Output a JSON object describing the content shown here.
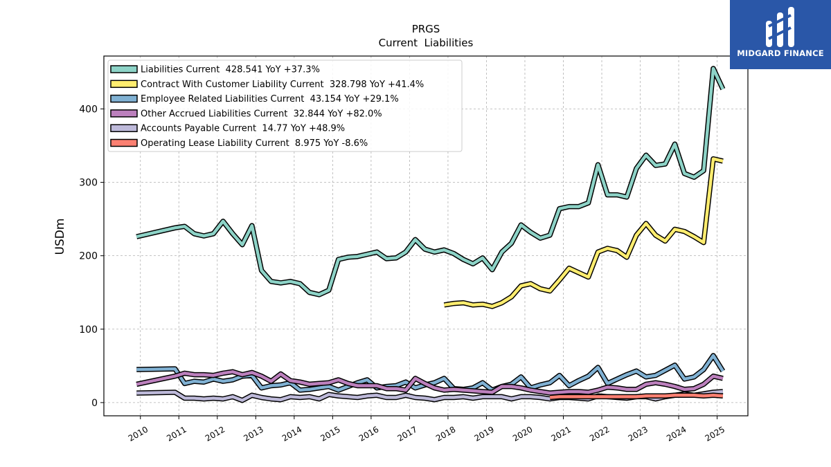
{
  "brand": {
    "name": "MIDGARD FINANCE",
    "color": "#2a57a8",
    "icon": "midgard-logo-icon"
  },
  "chart_data": {
    "type": "line",
    "title": "PRGS",
    "subtitle": "Current  Liabilities",
    "ylabel": "USDm",
    "xlabel": "",
    "ylim": [
      -18,
      472
    ],
    "xlim": [
      2009.05,
      2025.8
    ],
    "yticks": [
      0,
      100,
      200,
      300,
      400
    ],
    "xticks": [
      2010,
      2011,
      2012,
      2013,
      2014,
      2015,
      2016,
      2017,
      2018,
      2019,
      2020,
      2021,
      2022,
      2023,
      2024,
      2025
    ],
    "grid": true,
    "legend_position": "top-left",
    "series": [
      {
        "name": "Liabilities Current  428.541 YoY +37.3%",
        "color": "#8dd3c7",
        "x": [
          2009.9,
          2010.9,
          2011.15,
          2011.4,
          2011.65,
          2011.9,
          2012.15,
          2012.4,
          2012.65,
          2012.9,
          2013.15,
          2013.4,
          2013.65,
          2013.9,
          2014.15,
          2014.4,
          2014.65,
          2014.9,
          2015.15,
          2015.4,
          2015.65,
          2015.9,
          2016.15,
          2016.4,
          2016.65,
          2016.9,
          2017.15,
          2017.4,
          2017.65,
          2017.9,
          2018.15,
          2018.4,
          2018.65,
          2018.9,
          2019.15,
          2019.4,
          2019.65,
          2019.9,
          2020.15,
          2020.4,
          2020.65,
          2020.9,
          2021.15,
          2021.4,
          2021.65,
          2021.9,
          2022.15,
          2022.4,
          2022.65,
          2022.9,
          2023.15,
          2023.4,
          2023.65,
          2023.9,
          2024.15,
          2024.4,
          2024.65,
          2024.9,
          2025.15
        ],
        "y": [
          226,
          238,
          240,
          230,
          227,
          230,
          247,
          230,
          215,
          241,
          180,
          165,
          163,
          165,
          162,
          150,
          147,
          153,
          195,
          198,
          199,
          202,
          205,
          196,
          197,
          205,
          222,
          209,
          205,
          208,
          203,
          195,
          189,
          197,
          181,
          205,
          217,
          242,
          232,
          224,
          228,
          264,
          267,
          267,
          272,
          324,
          283,
          283,
          280,
          319,
          337,
          323,
          325,
          352,
          312,
          307,
          316,
          455,
          427
        ]
      },
      {
        "name": "Contract With Customer Liability Current  328.798 YoY +41.4%",
        "color": "#ffed6f",
        "x": [
          2017.9,
          2018.15,
          2018.4,
          2018.65,
          2018.9,
          2019.15,
          2019.4,
          2019.65,
          2019.9,
          2020.15,
          2020.4,
          2020.65,
          2020.9,
          2021.15,
          2021.4,
          2021.65,
          2021.9,
          2022.15,
          2022.4,
          2022.65,
          2022.9,
          2023.15,
          2023.4,
          2023.65,
          2023.9,
          2024.15,
          2024.4,
          2024.65,
          2024.9,
          2025.15
        ],
        "y": [
          133,
          135,
          136,
          133,
          134,
          131,
          136,
          144,
          159,
          162,
          155,
          152,
          167,
          183,
          177,
          171,
          205,
          210,
          207,
          198,
          228,
          244,
          228,
          220,
          236,
          233,
          226,
          218,
          332,
          329
        ]
      },
      {
        "name": "Employee Related Liabilities Current  43.154 YoY +29.1%",
        "color": "#80b1d3",
        "x": [
          2009.9,
          2010.9,
          2011.15,
          2011.4,
          2011.65,
          2011.9,
          2012.15,
          2012.4,
          2012.65,
          2012.9,
          2013.15,
          2013.4,
          2013.65,
          2013.9,
          2014.15,
          2014.4,
          2014.65,
          2014.9,
          2015.15,
          2015.4,
          2015.65,
          2015.9,
          2016.15,
          2016.4,
          2016.65,
          2016.9,
          2017.15,
          2017.4,
          2017.65,
          2017.9,
          2018.15,
          2018.4,
          2018.65,
          2018.9,
          2019.15,
          2019.4,
          2019.65,
          2019.9,
          2020.15,
          2020.4,
          2020.65,
          2020.9,
          2021.15,
          2021.4,
          2021.65,
          2021.9,
          2022.15,
          2022.4,
          2022.65,
          2022.9,
          2023.15,
          2023.4,
          2023.65,
          2023.9,
          2024.15,
          2024.4,
          2024.65,
          2024.9,
          2025.15
        ],
        "y": [
          45,
          46,
          26,
          29,
          28,
          32,
          29,
          31,
          36,
          37,
          20,
          23,
          24,
          27,
          17,
          18,
          20,
          22,
          17,
          22,
          27,
          31,
          20,
          22,
          23,
          28,
          20,
          24,
          27,
          33,
          19,
          18,
          20,
          27,
          17,
          22,
          25,
          35,
          20,
          24,
          27,
          37,
          23,
          30,
          36,
          48,
          26,
          32,
          38,
          43,
          35,
          37,
          44,
          51,
          32,
          35,
          45,
          64,
          43
        ]
      },
      {
        "name": "Other Accrued Liabilities Current  32.844 YoY +82.0%",
        "color": "#bc80bd",
        "x": [
          2009.9,
          2010.9,
          2011.15,
          2011.4,
          2011.65,
          2011.9,
          2012.15,
          2012.4,
          2012.65,
          2012.9,
          2013.15,
          2013.4,
          2013.65,
          2013.9,
          2014.15,
          2014.4,
          2014.65,
          2014.9,
          2015.15,
          2015.4,
          2015.65,
          2015.9,
          2016.15,
          2016.4,
          2016.65,
          2016.9,
          2017.15,
          2017.4,
          2017.65,
          2017.9,
          2018.15,
          2018.4,
          2018.65,
          2018.9,
          2019.15,
          2019.4,
          2019.65,
          2019.9,
          2020.15,
          2020.4,
          2020.65,
          2020.9,
          2021.15,
          2021.4,
          2021.65,
          2021.9,
          2022.15,
          2022.4,
          2022.65,
          2022.9,
          2023.15,
          2023.4,
          2023.65,
          2023.9,
          2024.15,
          2024.4,
          2024.65,
          2024.9,
          2025.15
        ],
        "y": [
          25,
          36,
          40,
          38,
          38,
          37,
          40,
          42,
          38,
          41,
          36,
          29,
          39,
          30,
          28,
          25,
          26,
          27,
          31,
          26,
          23,
          23,
          23,
          19,
          19,
          17,
          33,
          26,
          20,
          17,
          18,
          17,
          16,
          15,
          14,
          22,
          22,
          20,
          17,
          15,
          13,
          14,
          15,
          15,
          14,
          17,
          21,
          20,
          18,
          18,
          25,
          27,
          25,
          22,
          18,
          19,
          25,
          36,
          33
        ]
      },
      {
        "name": "Accounts Payable Current  14.77 YoY +48.9%",
        "color": "#bebada",
        "x": [
          2009.9,
          2010.9,
          2011.15,
          2011.4,
          2011.65,
          2011.9,
          2012.15,
          2012.4,
          2012.65,
          2012.9,
          2013.15,
          2013.4,
          2013.65,
          2013.9,
          2014.15,
          2014.4,
          2014.65,
          2014.9,
          2015.15,
          2015.4,
          2015.65,
          2015.9,
          2016.15,
          2016.4,
          2016.65,
          2016.9,
          2017.15,
          2017.4,
          2017.65,
          2017.9,
          2018.15,
          2018.4,
          2018.65,
          2018.9,
          2019.15,
          2019.4,
          2019.65,
          2019.9,
          2020.15,
          2020.4,
          2020.65,
          2020.9,
          2021.15,
          2021.4,
          2021.65,
          2021.9,
          2022.15,
          2022.4,
          2022.65,
          2022.9,
          2023.15,
          2023.4,
          2023.65,
          2023.9,
          2024.15,
          2024.4,
          2024.65,
          2024.9,
          2025.15
        ],
        "y": [
          13,
          14,
          6,
          6,
          5,
          6,
          5,
          8,
          3,
          10,
          7,
          5,
          4,
          8,
          7,
          8,
          5,
          11,
          9,
          8,
          7,
          9,
          10,
          7,
          7,
          10,
          7,
          6,
          4,
          7,
          7,
          8,
          6,
          8,
          8,
          8,
          5,
          8,
          8,
          7,
          5,
          7,
          7,
          6,
          5,
          9,
          8,
          7,
          6,
          8,
          8,
          5,
          8,
          10,
          12,
          10,
          12,
          14,
          15
        ]
      },
      {
        "name": "Operating Lease Liability Current  8.975 YoY -8.6%",
        "color": "#fb8072",
        "x": [
          2020.65,
          2020.9,
          2021.15,
          2021.4,
          2021.65,
          2021.9,
          2022.15,
          2022.4,
          2022.65,
          2022.9,
          2023.15,
          2023.4,
          2023.65,
          2023.9,
          2024.15,
          2024.4,
          2024.65,
          2024.9,
          2025.15
        ],
        "y": [
          7,
          8,
          8,
          8,
          8,
          8,
          8,
          8,
          8,
          8,
          9,
          9,
          9,
          10,
          10,
          10,
          9,
          10,
          9
        ]
      }
    ]
  }
}
